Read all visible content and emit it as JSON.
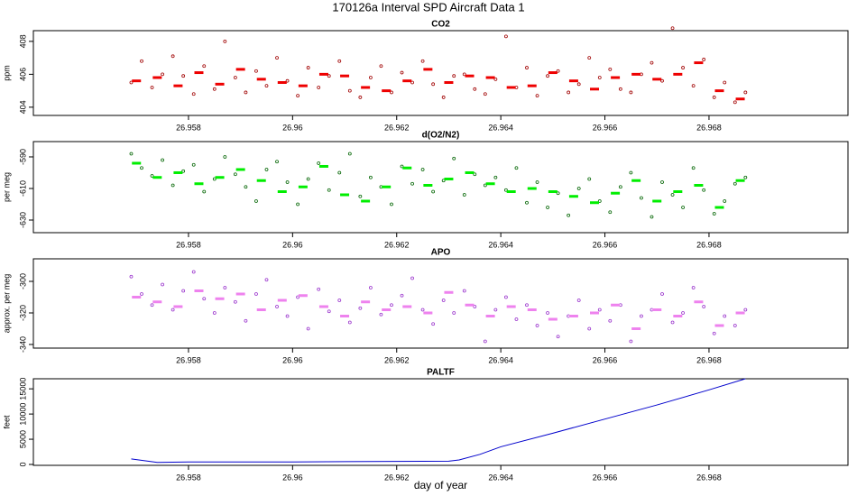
{
  "title": "170126a   Interval SPD Aircraft Data 1",
  "chart_data": [
    {
      "type": "scatter",
      "title": "CO2",
      "ylabel": "ppm",
      "xlim": [
        26.95502,
        26.97067
      ],
      "xticks": [
        26.958,
        26.96,
        26.962,
        26.964,
        26.966,
        26.968
      ],
      "ylim": [
        403.5,
        408.65
      ],
      "yticks": [
        404,
        406,
        408
      ],
      "series": [
        {
          "marker": "circle",
          "color": "#a00000",
          "x": [
            26.9569,
            26.9571,
            26.9573,
            26.9575,
            26.9577,
            26.9579,
            26.9581,
            26.9583,
            26.9585,
            26.9587,
            26.9589,
            26.9591,
            26.9593,
            26.9595,
            26.9597,
            26.9599,
            26.9601,
            26.9603,
            26.9605,
            26.9607,
            26.9609,
            26.9611,
            26.9613,
            26.9615,
            26.9617,
            26.9619,
            26.9621,
            26.9623,
            26.9625,
            26.9627,
            26.9629,
            26.9631,
            26.9633,
            26.9635,
            26.9637,
            26.9639,
            26.9641,
            26.9643,
            26.9645,
            26.9647,
            26.9649,
            26.9651,
            26.9653,
            26.9655,
            26.9657,
            26.9659,
            26.9661,
            26.9663,
            26.9665,
            26.9667,
            26.9669,
            26.9671,
            26.9673,
            26.9675,
            26.9677,
            26.9679,
            26.9681,
            26.9683,
            26.9685,
            26.9687
          ],
          "values": [
            405.5,
            406.8,
            405.2,
            406.0,
            407.1,
            405.9,
            404.8,
            406.5,
            405.1,
            408.0,
            405.8,
            404.9,
            406.2,
            405.3,
            407.0,
            405.6,
            404.7,
            406.4,
            405.2,
            405.9,
            406.8,
            405.0,
            404.6,
            405.8,
            406.5,
            404.9,
            406.1,
            405.5,
            406.8,
            405.4,
            404.6,
            405.9,
            406.0,
            405.1,
            404.8,
            405.7,
            408.3,
            405.2,
            406.4,
            404.7,
            405.9,
            406.2,
            404.9,
            405.4,
            407.0,
            405.8,
            406.3,
            405.1,
            404.9,
            406.0,
            406.7,
            405.6,
            408.8,
            406.4,
            405.3,
            406.9,
            404.6,
            405.5,
            404.3,
            404.9
          ]
        },
        {
          "marker": "dash",
          "color": "#ee0000",
          "x": [
            26.957,
            26.9574,
            26.9578,
            26.9582,
            26.9586,
            26.959,
            26.9594,
            26.9598,
            26.9602,
            26.9606,
            26.961,
            26.9614,
            26.9618,
            26.9622,
            26.9626,
            26.963,
            26.9634,
            26.9638,
            26.9642,
            26.9646,
            26.965,
            26.9654,
            26.9658,
            26.9662,
            26.9666,
            26.967,
            26.9674,
            26.9678,
            26.9682,
            26.9686
          ],
          "values": [
            405.6,
            405.8,
            405.3,
            406.1,
            405.4,
            406.3,
            405.7,
            405.5,
            405.3,
            406.0,
            405.9,
            405.2,
            405.0,
            405.6,
            406.3,
            405.5,
            405.9,
            405.8,
            405.2,
            405.3,
            406.1,
            405.6,
            405.1,
            405.8,
            406.0,
            405.7,
            406.0,
            406.7,
            405.0,
            404.5
          ]
        }
      ]
    },
    {
      "type": "scatter",
      "title": "d(O2/N2)",
      "ylabel": "per meg",
      "xlim": [
        26.95502,
        26.97067
      ],
      "xticks": [
        26.958,
        26.96,
        26.962,
        26.964,
        26.966,
        26.968
      ],
      "ylim": [
        -638,
        -580.3
      ],
      "yticks": [
        -630,
        -610,
        -590
      ],
      "series": [
        {
          "marker": "circle",
          "color": "#006400",
          "x": [
            26.9569,
            26.9571,
            26.9573,
            26.9575,
            26.9577,
            26.9579,
            26.9581,
            26.9583,
            26.9585,
            26.9587,
            26.9589,
            26.9591,
            26.9593,
            26.9595,
            26.9597,
            26.9599,
            26.9601,
            26.9603,
            26.9605,
            26.9607,
            26.9609,
            26.9611,
            26.9613,
            26.9615,
            26.9617,
            26.9619,
            26.9621,
            26.9623,
            26.9625,
            26.9627,
            26.9629,
            26.9631,
            26.9633,
            26.9635,
            26.9637,
            26.9639,
            26.9641,
            26.9643,
            26.9645,
            26.9647,
            26.9649,
            26.9651,
            26.9653,
            26.9655,
            26.9657,
            26.9659,
            26.9661,
            26.9663,
            26.9665,
            26.9667,
            26.9669,
            26.9671,
            26.9673,
            26.9675,
            26.9677,
            26.9679,
            26.9681,
            26.9683,
            26.9685,
            26.9687
          ],
          "values": [
            -588,
            -597,
            -602,
            -592,
            -608,
            -599,
            -595,
            -612,
            -604,
            -590,
            -601,
            -609,
            -618,
            -598,
            -593,
            -606,
            -620,
            -604,
            -594,
            -611,
            -600,
            -588,
            -615,
            -603,
            -609,
            -620,
            -596,
            -607,
            -598,
            -612,
            -605,
            -591,
            -614,
            -601,
            -608,
            -603,
            -611,
            -597,
            -619,
            -606,
            -622,
            -613,
            -627,
            -610,
            -604,
            -618,
            -625,
            -609,
            -600,
            -616,
            -628,
            -606,
            -614,
            -622,
            -597,
            -611,
            -626,
            -618,
            -607,
            -603
          ]
        },
        {
          "marker": "dash",
          "color": "#00ee00",
          "x": [
            26.957,
            26.9574,
            26.9578,
            26.9582,
            26.9586,
            26.959,
            26.9594,
            26.9598,
            26.9602,
            26.9606,
            26.961,
            26.9614,
            26.9618,
            26.9622,
            26.9626,
            26.963,
            26.9634,
            26.9638,
            26.9642,
            26.9646,
            26.965,
            26.9654,
            26.9658,
            26.9662,
            26.9666,
            26.967,
            26.9674,
            26.9678,
            26.9682,
            26.9686
          ],
          "values": [
            -594,
            -603,
            -600,
            -607,
            -603,
            -598,
            -605,
            -612,
            -609,
            -596,
            -614,
            -618,
            -609,
            -597,
            -608,
            -604,
            -600,
            -607,
            -612,
            -610,
            -612,
            -615,
            -619,
            -613,
            -605,
            -618,
            -612,
            -608,
            -622,
            -605
          ]
        }
      ]
    },
    {
      "type": "scatter",
      "title": "APO",
      "ylabel": "approx. per meg",
      "xlim": [
        26.95502,
        26.97067
      ],
      "xticks": [
        26.958,
        26.96,
        26.962,
        26.964,
        26.966,
        26.968
      ],
      "ylim": [
        -342.3,
        -285.7
      ],
      "yticks": [
        -340,
        -320,
        -300
      ],
      "series": [
        {
          "marker": "circle",
          "color": "#9932cc",
          "x": [
            26.9569,
            26.9571,
            26.9573,
            26.9575,
            26.9577,
            26.9579,
            26.9581,
            26.9583,
            26.9585,
            26.9587,
            26.9589,
            26.9591,
            26.9593,
            26.9595,
            26.9597,
            26.9599,
            26.9601,
            26.9603,
            26.9605,
            26.9607,
            26.9609,
            26.9611,
            26.9613,
            26.9615,
            26.9617,
            26.9619,
            26.9621,
            26.9623,
            26.9625,
            26.9627,
            26.9629,
            26.9631,
            26.9633,
            26.9635,
            26.9637,
            26.9639,
            26.9641,
            26.9643,
            26.9645,
            26.9647,
            26.9649,
            26.9651,
            26.9653,
            26.9655,
            26.9657,
            26.9659,
            26.9661,
            26.9663,
            26.9665,
            26.9667,
            26.9669,
            26.9671,
            26.9673,
            26.9675,
            26.9677,
            26.9679,
            26.9681,
            26.9683,
            26.9685,
            26.9687
          ],
          "values": [
            -297,
            -308,
            -315,
            -302,
            -318,
            -306,
            -294,
            -311,
            -320,
            -304,
            -313,
            -325,
            -308,
            -299,
            -316,
            -322,
            -310,
            -330,
            -305,
            -319,
            -312,
            -326,
            -317,
            -304,
            -321,
            -315,
            -309,
            -298,
            -318,
            -327,
            -312,
            -320,
            -306,
            -316,
            -338,
            -318,
            -310,
            -324,
            -315,
            -328,
            -320,
            -335,
            -322,
            -312,
            -330,
            -318,
            -325,
            -315,
            -338,
            -322,
            -318,
            -308,
            -326,
            -320,
            -304,
            -316,
            -333,
            -322,
            -328,
            -318
          ]
        },
        {
          "marker": "dash",
          "color": "#ee82ee",
          "x": [
            26.957,
            26.9574,
            26.9578,
            26.9582,
            26.9586,
            26.959,
            26.9594,
            26.9598,
            26.9602,
            26.9606,
            26.961,
            26.9614,
            26.9618,
            26.9622,
            26.9626,
            26.963,
            26.9634,
            26.9638,
            26.9642,
            26.9646,
            26.965,
            26.9654,
            26.9658,
            26.9662,
            26.9666,
            26.967,
            26.9674,
            26.9678,
            26.9682,
            26.9686
          ],
          "values": [
            -310,
            -313,
            -316,
            -306,
            -311,
            -308,
            -318,
            -312,
            -309,
            -316,
            -322,
            -313,
            -318,
            -316,
            -320,
            -307,
            -315,
            -322,
            -316,
            -318,
            -324,
            -322,
            -320,
            -315,
            -330,
            -318,
            -322,
            -313,
            -328,
            -320
          ]
        }
      ]
    },
    {
      "type": "line",
      "title": "PALTF",
      "ylabel": "feet",
      "xlabel": "day of year",
      "xlim": [
        26.95502,
        26.97067
      ],
      "xticks": [
        26.958,
        26.96,
        26.962,
        26.964,
        26.966,
        26.968
      ],
      "ylim": [
        -180,
        17000
      ],
      "yticks": [
        0,
        5000,
        10000,
        15000
      ],
      "series": [
        {
          "color": "#0000cc",
          "x": [
            26.9569,
            26.9574,
            26.958,
            26.96,
            26.962,
            26.963,
            26.9632,
            26.9636,
            26.964,
            26.965,
            26.966,
            26.967,
            26.968,
            26.9687
          ],
          "values": [
            1100,
            400,
            500,
            500,
            600,
            650,
            900,
            2000,
            3500,
            6200,
            9000,
            11800,
            14800,
            17000
          ]
        }
      ]
    }
  ]
}
